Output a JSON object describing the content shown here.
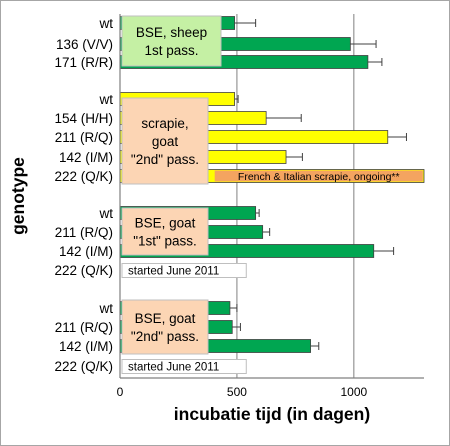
{
  "chart_data": {
    "type": "bar",
    "orientation": "horizontal",
    "xlabel": "incubatie tijd (in dagen)",
    "ylabel": "genotype",
    "xlim": [
      0,
      1300
    ],
    "xticks": [
      0,
      500,
      1000
    ],
    "grid": "vertical",
    "colors": {
      "green": "#00a651",
      "yellow": "#ffff00",
      "orange": "#f4a460",
      "box_green": "#c5f0a4",
      "box_peach": "#fcd5b4",
      "bar_edge": "#404040",
      "grid": "#808080"
    },
    "groups": [
      {
        "label": "BSE, sheep\n1st pass.",
        "box_color": "box_green",
        "bars": [
          {
            "genotype": "wt",
            "value": 490,
            "error": 90,
            "color": "green"
          },
          {
            "genotype": "136 (V/V)",
            "value": 985,
            "error": 110,
            "color": "green"
          },
          {
            "genotype": "171 (R/R)",
            "value": 1060,
            "error": 60,
            "color": "green"
          }
        ]
      },
      {
        "label": "scrapie,\ngoat\n\"2nd\" pass.",
        "box_color": "box_peach",
        "bars": [
          {
            "genotype": "wt",
            "value": 490,
            "error": 15,
            "color": "yellow"
          },
          {
            "genotype": "154 (H/H)",
            "value": 625,
            "error": 150,
            "color": "yellow"
          },
          {
            "genotype": "211 (R/Q)",
            "value": 1145,
            "error": 80,
            "color": "yellow"
          },
          {
            "genotype": "142 (I/M)",
            "value": 710,
            "error": 70,
            "color": "yellow"
          },
          {
            "genotype": "222 (Q/K)",
            "value": 1300,
            "error": null,
            "color": "yellow",
            "overlay_text": "French & Italian scrapie, ongoing**"
          }
        ]
      },
      {
        "label": "BSE, goat\n\"1st\" pass.",
        "box_color": "box_peach",
        "bars": [
          {
            "genotype": "wt",
            "value": 580,
            "error": 15,
            "color": "green"
          },
          {
            "genotype": "211 (R/Q)",
            "value": 610,
            "error": 30,
            "color": "green"
          },
          {
            "genotype": "142 (I/M)",
            "value": 1085,
            "error": 85,
            "color": "green"
          },
          {
            "genotype": "222 (Q/K)",
            "value": null,
            "error": null,
            "color": "green",
            "note": "started June 2011"
          }
        ]
      },
      {
        "label": "BSE, goat\n\"2nd\" pass.",
        "box_color": "box_peach",
        "bars": [
          {
            "genotype": "wt",
            "value": 470,
            "error": 30,
            "color": "green"
          },
          {
            "genotype": "211 (R/Q)",
            "value": 480,
            "error": 35,
            "color": "green"
          },
          {
            "genotype": "142 (I/M)",
            "value": 815,
            "error": 35,
            "color": "green"
          },
          {
            "genotype": "222 (Q/K)",
            "value": null,
            "error": null,
            "color": "green",
            "note": "started June 2011"
          }
        ]
      }
    ]
  }
}
